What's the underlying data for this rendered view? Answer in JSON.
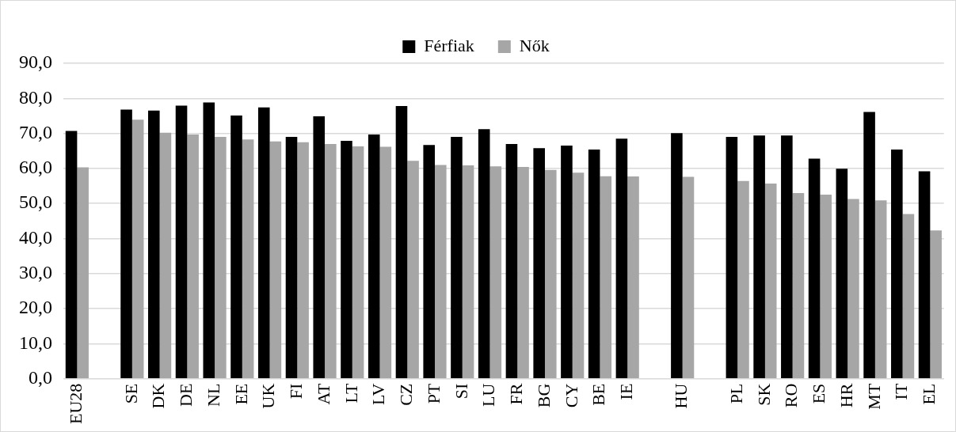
{
  "chart_data": {
    "type": "bar",
    "categories": [
      "EU28",
      null,
      "SE",
      "DK",
      "DE",
      "NL",
      "EE",
      "UK",
      "FI",
      "AT",
      "LT",
      "LV",
      "CZ",
      "PT",
      "SI",
      "LU",
      "FR",
      "BG",
      "CY",
      "BE",
      "IE",
      null,
      "HU",
      null,
      "PL",
      "SK",
      "RO",
      "ES",
      "HR",
      "MT",
      "IT",
      "EL"
    ],
    "series": [
      {
        "name": "Férfiak",
        "color": "#000000",
        "values": [
          70.7,
          null,
          76.8,
          76.5,
          77.9,
          78.8,
          75.1,
          77.4,
          69.0,
          74.9,
          67.9,
          69.7,
          77.8,
          66.7,
          69.0,
          71.2,
          67.0,
          65.8,
          66.5,
          65.4,
          68.5,
          null,
          70.1,
          null,
          69.0,
          69.4,
          69.4,
          62.8,
          59.9,
          76.1,
          65.4,
          59.2
        ]
      },
      {
        "name": "Nők",
        "color": "#a6a6a6",
        "values": [
          60.3,
          null,
          73.9,
          70.2,
          69.7,
          69.0,
          68.3,
          67.7,
          67.5,
          67.0,
          66.3,
          66.2,
          62.2,
          61.0,
          60.9,
          60.6,
          60.4,
          59.6,
          58.8,
          57.8,
          57.7,
          null,
          57.6,
          null,
          56.4,
          55.7,
          53.0,
          52.5,
          51.3,
          50.9,
          47.0,
          42.3
        ]
      }
    ],
    "ylim": [
      0,
      90
    ],
    "yticks": [
      {
        "value": 0,
        "label": "0,0"
      },
      {
        "value": 10,
        "label": "10,0"
      },
      {
        "value": 20,
        "label": "20,0"
      },
      {
        "value": 30,
        "label": "30,0"
      },
      {
        "value": 40,
        "label": "40,0"
      },
      {
        "value": 50,
        "label": "50,0"
      },
      {
        "value": 60,
        "label": "60,0"
      },
      {
        "value": 70,
        "label": "70,0"
      },
      {
        "value": 80,
        "label": "80,0"
      },
      {
        "value": 90,
        "label": "90,0"
      }
    ],
    "grid": "y",
    "legend": "top"
  }
}
